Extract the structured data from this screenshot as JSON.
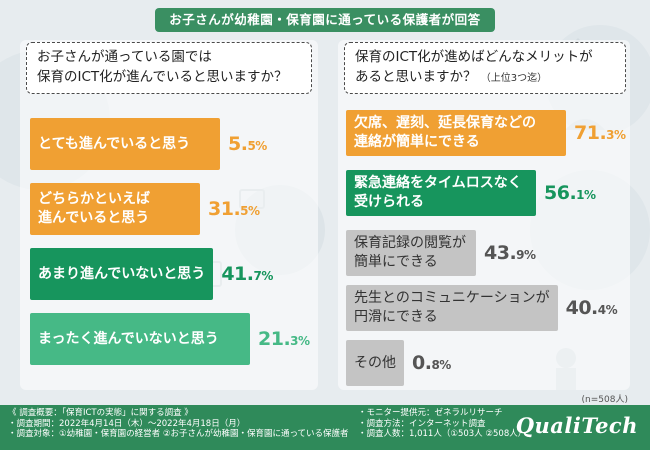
{
  "banner": "お子さんが幼稚園・保育園に通っている保護者が回答",
  "chart_data": [
    {
      "type": "bar",
      "question_lines": [
        "お子さんが通っている園では",
        "保育のICT化が進んでいると思いますか？"
      ],
      "categories": [
        "とても進んでいると思う",
        "どちらかといえば進んでいると思う",
        "あまり進んでいないと思う",
        "まったく進んでいないと思う"
      ],
      "values": [
        5.5,
        31.5,
        41.7,
        21.3
      ],
      "labels": [
        {
          "lines": [
            "とても進んでいると思う"
          ],
          "pct_int": "5.",
          "pct_dec": "5%",
          "color": "orange"
        },
        {
          "lines": [
            "どちらかといえば",
            "進んでいると思う"
          ],
          "pct_int": "31.",
          "pct_dec": "5%",
          "color": "orange"
        },
        {
          "lines": [
            "あまり進んでいないと思う"
          ],
          "pct_int": "41.",
          "pct_dec": "7%",
          "color": "green"
        },
        {
          "lines": [
            "まったく進んでいないと思う"
          ],
          "pct_int": "21.",
          "pct_dec": "3%",
          "color": "lgreen"
        }
      ]
    },
    {
      "type": "bar",
      "question_lines": [
        "保育のICT化が進めばどんなメリットが",
        "あると思いますか？"
      ],
      "question_sub": "（上位3つ迄）",
      "categories": [
        "欠席、遅刻、延長保育などの連絡が簡単にできる",
        "緊急連絡をタイムロスなく受けられる",
        "保育記録の閲覧が簡単にできる",
        "先生とのコミュニケーションが円滑にできる",
        "その他"
      ],
      "values": [
        71.3,
        56.1,
        43.9,
        40.4,
        0.8
      ],
      "labels": [
        {
          "lines": [
            "欠席、遅刻、延長保育などの",
            "連絡が簡単にできる"
          ],
          "pct_int": "71.",
          "pct_dec": "3%",
          "color": "orange"
        },
        {
          "lines": [
            "緊急連絡をタイムロスなく",
            "受けられる"
          ],
          "pct_int": "56.",
          "pct_dec": "1%",
          "color": "green"
        },
        {
          "lines": [
            "保育記録の閲覧が",
            "簡単にできる"
          ],
          "pct_int": "43.",
          "pct_dec": "9%",
          "color": "grey"
        },
        {
          "lines": [
            "先生とのコミュニケーションが",
            "円滑にできる"
          ],
          "pct_int": "40.",
          "pct_dec": "4%",
          "color": "grey"
        },
        {
          "lines": [
            "その他"
          ],
          "pct_int": "0.",
          "pct_dec": "8%",
          "color": "grey"
        }
      ]
    }
  ],
  "note_n": "(n=508人)",
  "footer": {
    "col1": [
      "《 調査概要：「保育ICTの実態」に関する調査 》",
      "・調査期間：2022年4月14日（木）〜2022年4月18日（月）",
      "・調査対象：①幼稚園・保育園の経営者 ②お子さんが幼稚園・保育園に通っている保護者"
    ],
    "col2": [
      "・モニター提供元：ゼネラルリサーチ",
      "・調査方法：インターネット調査",
      "・調査人数：1,011人（①503人 ②508人）"
    ],
    "logo": "QualiTech"
  },
  "colors": {
    "orange": "#f0a033",
    "green": "#17955d",
    "lgreen": "#46b986",
    "grey": "#c4c4c4",
    "footer": "#2f8a5a"
  }
}
